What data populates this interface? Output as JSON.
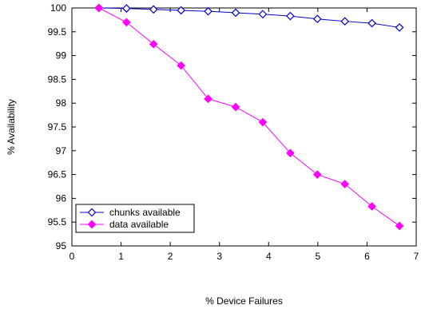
{
  "chart_data": {
    "type": "line",
    "title": "",
    "xlabel": "% Device Failures",
    "ylabel": "% Availability",
    "xlim": [
      0,
      7
    ],
    "ylim": [
      95,
      100
    ],
    "xticks": [
      0,
      1,
      2,
      3,
      4,
      5,
      6,
      7
    ],
    "yticks": [
      95,
      95.5,
      96,
      96.5,
      97,
      97.5,
      98,
      98.5,
      99,
      99.5,
      100
    ],
    "grid": false,
    "legend_position": "bottom-left",
    "series": [
      {
        "name": "chunks available",
        "color": "#0000cc",
        "marker": "open-diamond",
        "x": [
          0.55,
          1.11,
          1.66,
          2.22,
          2.77,
          3.33,
          3.88,
          4.44,
          4.99,
          5.55,
          6.1,
          6.66
        ],
        "y": [
          100,
          99.99,
          99.97,
          99.95,
          99.93,
          99.9,
          99.87,
          99.83,
          99.77,
          99.72,
          99.68,
          99.59
        ]
      },
      {
        "name": "data available",
        "color": "#ff00ff",
        "marker": "filled-diamond",
        "x": [
          0.55,
          1.11,
          1.66,
          2.22,
          2.77,
          3.33,
          3.88,
          4.44,
          4.99,
          5.55,
          6.1,
          6.66
        ],
        "y": [
          100,
          99.7,
          99.24,
          98.79,
          98.09,
          97.92,
          97.6,
          96.95,
          96.5,
          96.3,
          95.83,
          95.42
        ]
      }
    ]
  }
}
